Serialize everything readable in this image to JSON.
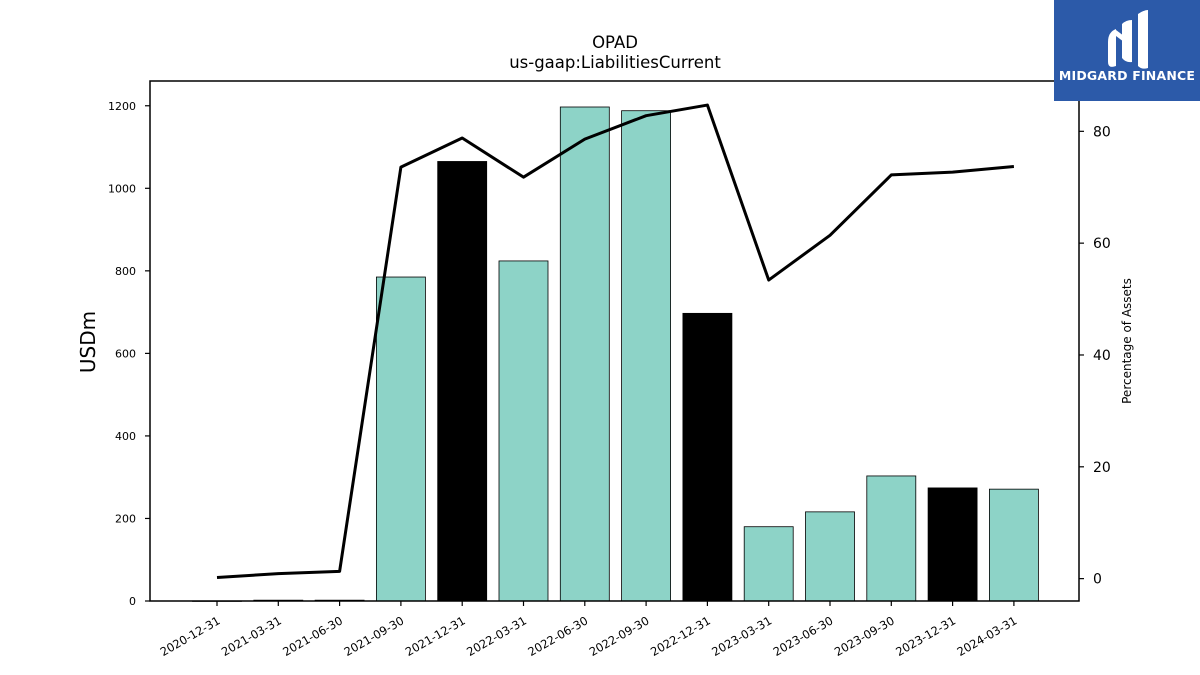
{
  "brand": {
    "name": "MIDGARD FINANCE",
    "logo_icon": "midgard-m-icon",
    "background_color": "#2c5aa9"
  },
  "chart_data": {
    "type": "bar",
    "title": "OPAD",
    "subtitle": "us-gaap:LiabilitiesCurrent",
    "ylabel": "USDm",
    "y2label": "Percentage of Assets",
    "ylim": [
      0,
      1260
    ],
    "y2lim": [
      -4,
      89
    ],
    "yticks": [
      0,
      200,
      400,
      600,
      800,
      1000,
      1200
    ],
    "y2ticks": [
      0,
      20,
      40,
      60,
      80
    ],
    "categories": [
      "2020-12-31",
      "2021-03-31",
      "2021-06-30",
      "2021-09-30",
      "2021-12-31",
      "2022-03-31",
      "2022-06-30",
      "2022-09-30",
      "2022-12-31",
      "2023-03-31",
      "2023-06-30",
      "2023-09-30",
      "2023-12-31",
      "2024-03-31"
    ],
    "series": [
      {
        "kind": "bar",
        "axis": "left",
        "values": [
          0.3,
          2,
          2,
          785,
          1065,
          824,
          1197,
          1188,
          697,
          180,
          216,
          303,
          274,
          271
        ],
        "colors": [
          "#8dd3c7",
          "#8dd3c7",
          "#8dd3c7",
          "#8dd3c7",
          "#000000",
          "#8dd3c7",
          "#8dd3c7",
          "#8dd3c7",
          "#000000",
          "#8dd3c7",
          "#8dd3c7",
          "#8dd3c7",
          "#000000",
          "#8dd3c7"
        ]
      },
      {
        "kind": "line",
        "axis": "right",
        "color": "#000000",
        "values": [
          0.2,
          0.9,
          1.3,
          73.6,
          78.8,
          71.8,
          78.6,
          82.8,
          84.7,
          53.4,
          61.4,
          72.2,
          72.7,
          73.7
        ]
      }
    ],
    "grid": false,
    "legend": "none"
  }
}
